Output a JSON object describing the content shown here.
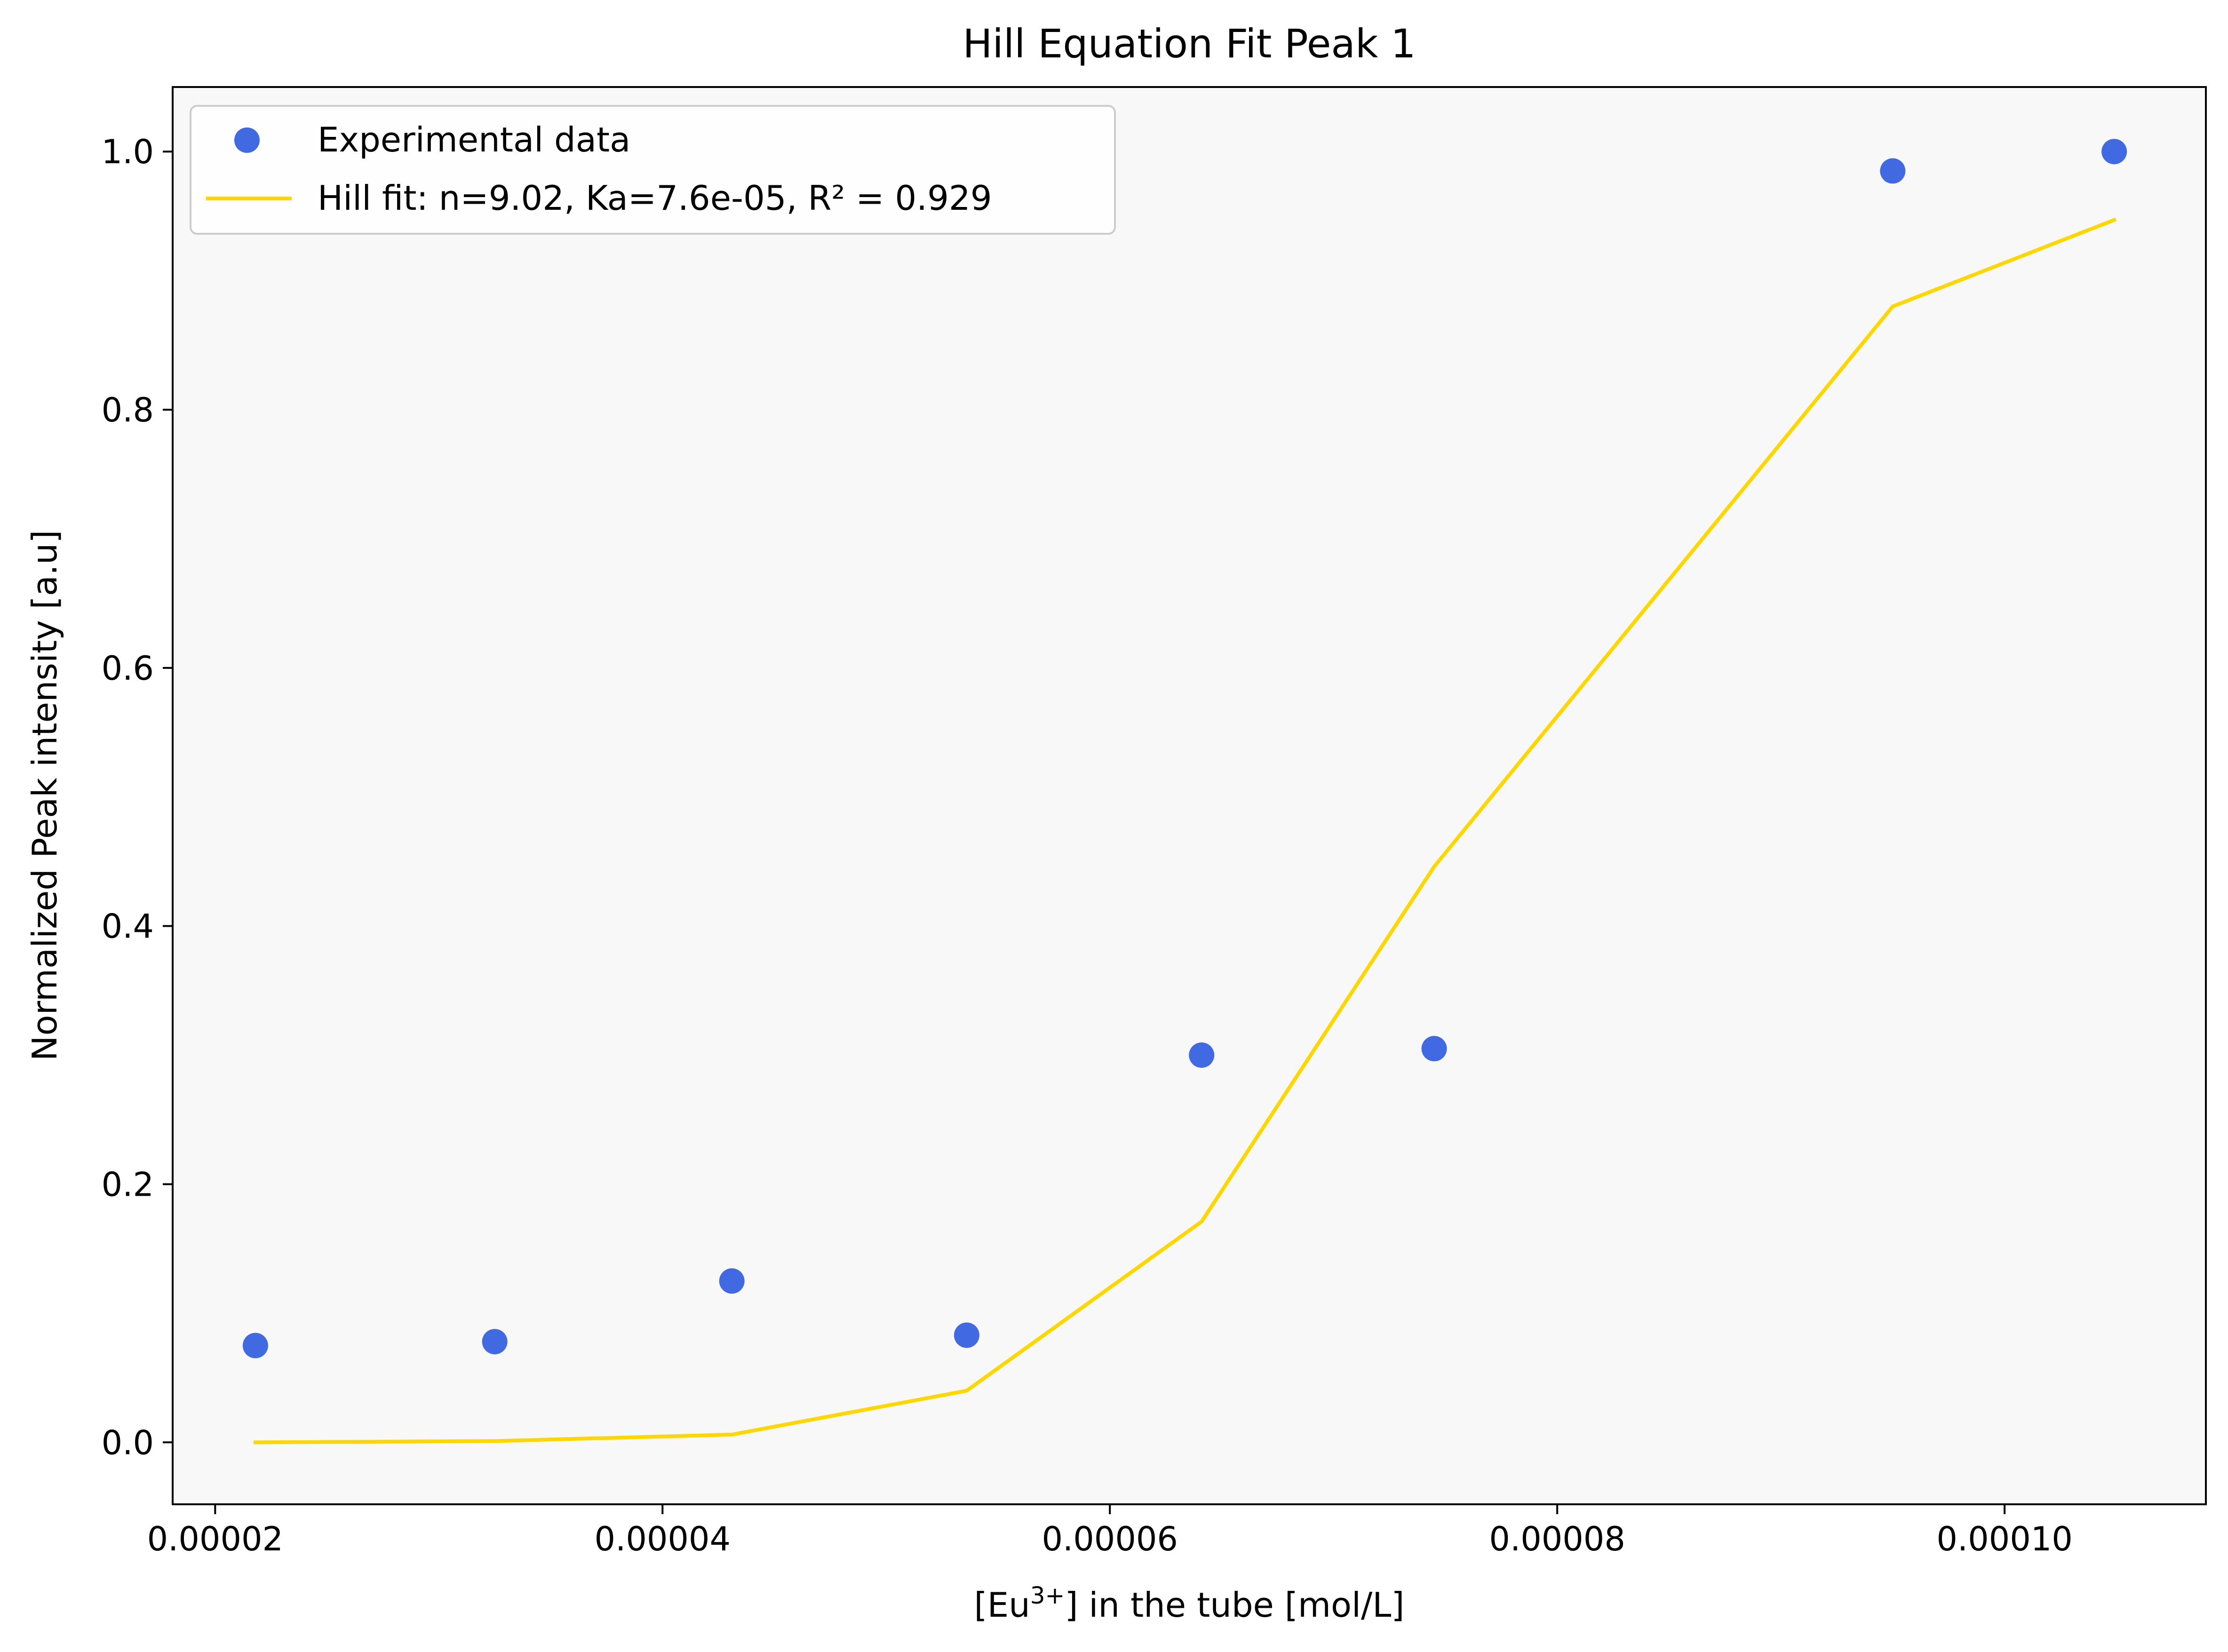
{
  "chart_data": {
    "type": "scatter",
    "title": "Hill Equation Fit Peak 1",
    "xlabel": {
      "prefix": "[Eu",
      "sup": "3+",
      "suffix": "] in the tube [mol/L]"
    },
    "ylabel": "Normalized Peak intensity [a.u]",
    "xlim": [
      1.81e-05,
      0.000109
    ],
    "ylim": [
      -0.048,
      1.05
    ],
    "xticks": [
      {
        "value": 2e-05,
        "label": "0.00002"
      },
      {
        "value": 4e-05,
        "label": "0.00004"
      },
      {
        "value": 6e-05,
        "label": "0.00006"
      },
      {
        "value": 8e-05,
        "label": "0.00008"
      },
      {
        "value": 0.0001,
        "label": "0.00010"
      }
    ],
    "yticks": [
      {
        "value": 0.0,
        "label": "0.0"
      },
      {
        "value": 0.2,
        "label": "0.2"
      },
      {
        "value": 0.4,
        "label": "0.4"
      },
      {
        "value": 0.6,
        "label": "0.6"
      },
      {
        "value": 0.8,
        "label": "0.8"
      },
      {
        "value": 1.0,
        "label": "1.0"
      }
    ],
    "grid": false,
    "legend_position": "top-left",
    "plot_background": "#f8f8f8",
    "series": [
      {
        "name": "Experimental data",
        "type": "scatter",
        "color": "#4169e1",
        "x": [
          2.18e-05,
          3.25e-05,
          4.31e-05,
          5.36e-05,
          6.41e-05,
          7.45e-05,
          9.5e-05,
          0.0001049
        ],
        "y": [
          0.075,
          0.078,
          0.125,
          0.083,
          0.3,
          0.305,
          0.985,
          1.0
        ]
      },
      {
        "name": "Hill fit: n=9.02, Ka=7.6e-05, R² = 0.929",
        "type": "line",
        "color": "#ffd700",
        "x": [
          2.18e-05,
          3.25e-05,
          4.31e-05,
          5.36e-05,
          6.41e-05,
          7.45e-05,
          9.5e-05,
          0.0001049
        ],
        "y": [
          0.0,
          0.001,
          0.006,
          0.04,
          0.171,
          0.446,
          0.88,
          0.947
        ]
      }
    ]
  }
}
